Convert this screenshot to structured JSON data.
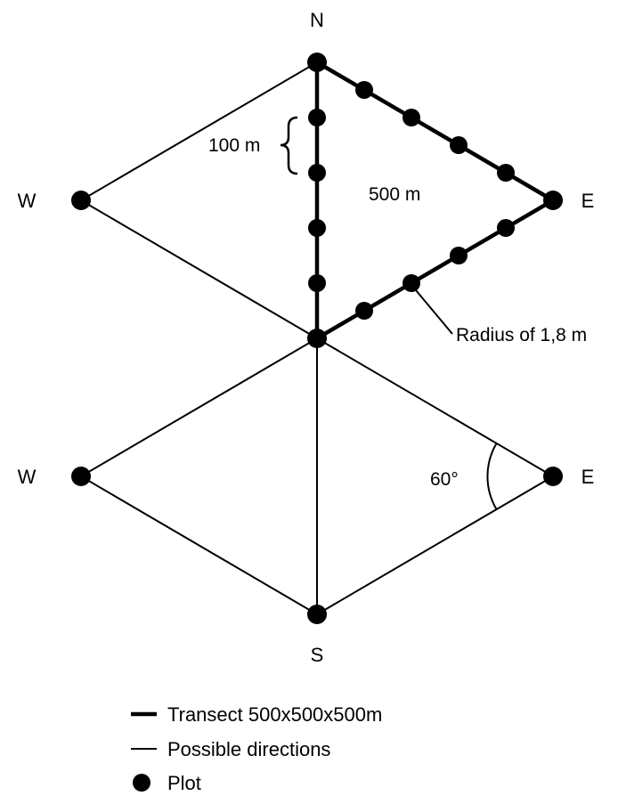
{
  "compass": {
    "north": "N",
    "south": "S",
    "west_upper": "W",
    "east_upper": "E",
    "west_lower": "W",
    "east_lower": "E"
  },
  "annotations": {
    "plot_spacing": "100 m",
    "transect_side": "500 m",
    "plot_radius": "Radius of 1,8 m",
    "angle": "60°"
  },
  "legend": {
    "transect": "Transect 500x500x500m",
    "possible_directions": "Possible directions",
    "plot": "Plot"
  },
  "colors": {
    "ink": "#000000",
    "background": "#ffffff"
  }
}
